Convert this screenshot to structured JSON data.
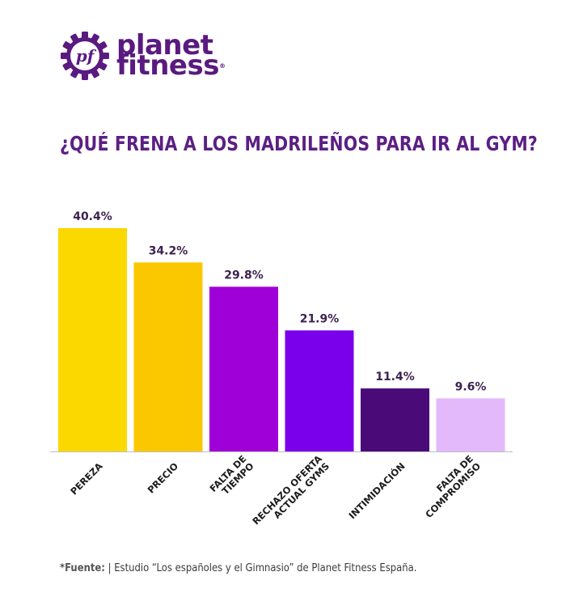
{
  "logo": {
    "brand_line1": "planet",
    "brand_line2": "fitness",
    "mark_text": "pf",
    "reg": "®",
    "color": "#5a1a80"
  },
  "title": "¿QUÉ FRENA A LOS MADRILEÑOS PARA IR AL GYM?",
  "chart_data": {
    "type": "bar",
    "categories": [
      [
        "PEREZA"
      ],
      [
        "PRECIO"
      ],
      [
        "FALTA DE",
        "TIEMPO"
      ],
      [
        "RECHAZO OFERTA",
        "ACTUAL GYMS"
      ],
      [
        "INTIMIDACIÓN"
      ],
      [
        "FALTA DE",
        "COMPROMISO"
      ]
    ],
    "values": [
      40.4,
      34.2,
      29.8,
      21.9,
      11.4,
      9.6
    ],
    "value_labels": [
      "40.4%",
      "34.2%",
      "29.8%",
      "21.9%",
      "11.4%",
      "9.6%"
    ],
    "colors": [
      "#fbd800",
      "#fbc800",
      "#a000d8",
      "#7a00ec",
      "#4a0a78",
      "#e3b9fb"
    ],
    "ylim": [
      0,
      40.4
    ],
    "grid": false,
    "legend": "none"
  },
  "source": {
    "label": "*Fuente:",
    "text": "| Estudio “Los españoles y el Gimnasio” de Planet Fitness España."
  }
}
